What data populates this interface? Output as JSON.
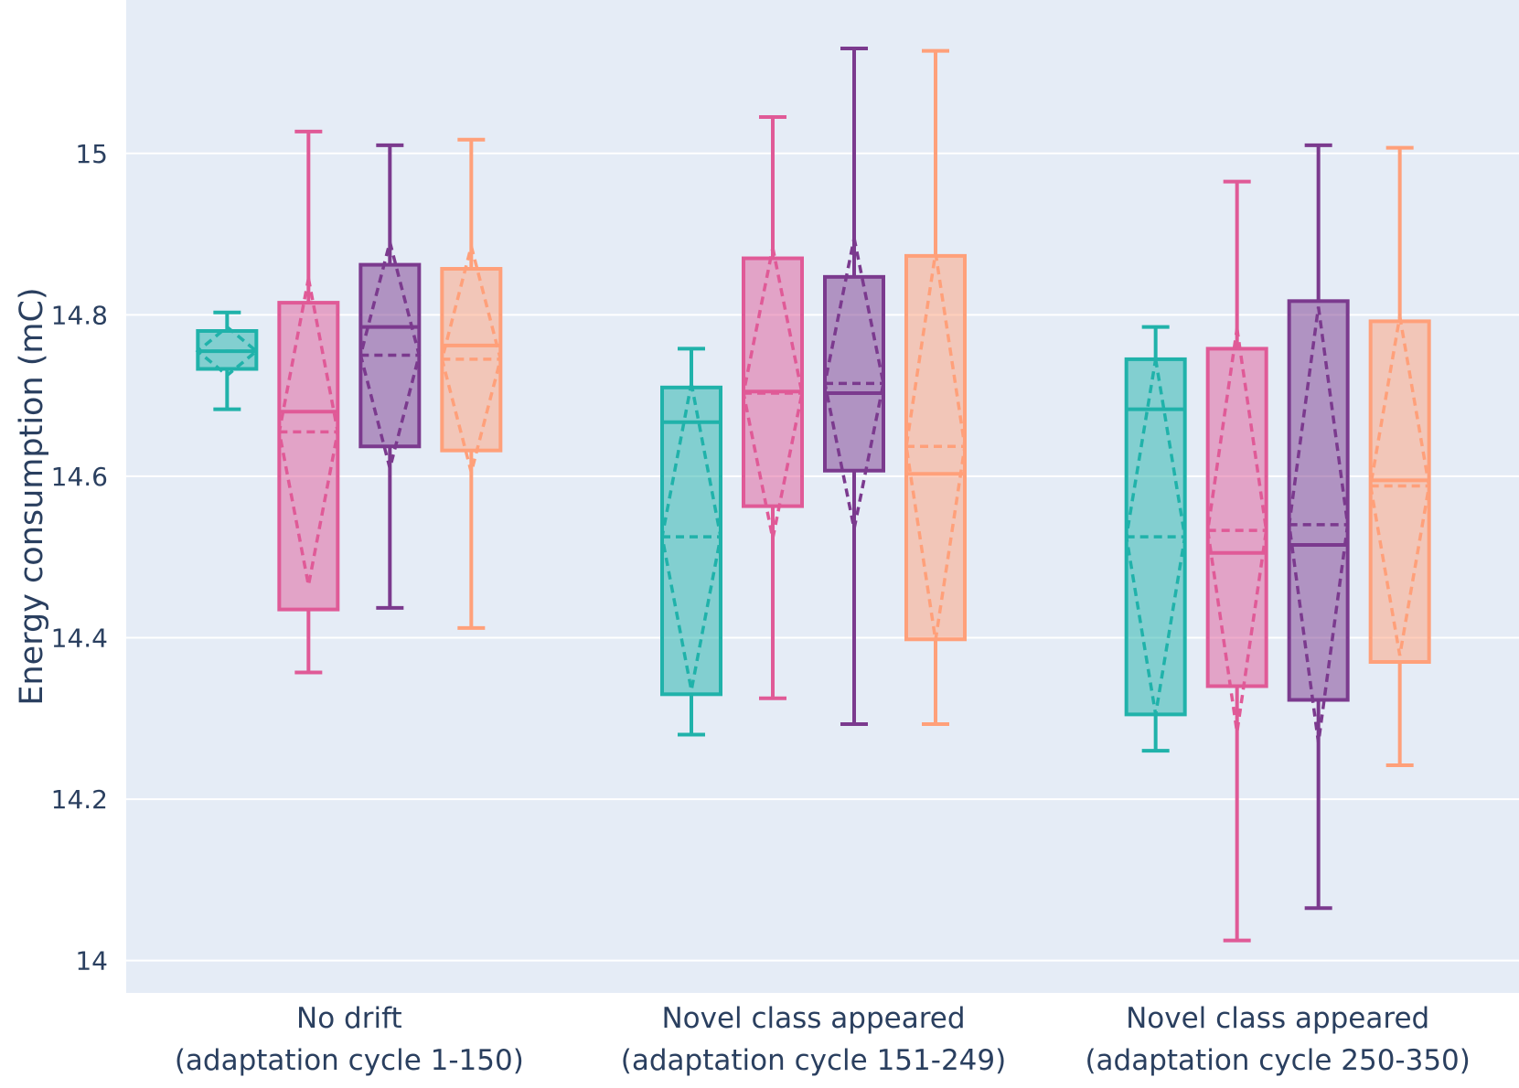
{
  "chart_data": {
    "type": "box",
    "ylabel": "Energy consumption (mC)",
    "xlabel": "",
    "ylim": [
      13.96,
      15.19
    ],
    "yticks": [
      {
        "value": 14,
        "label": "14"
      },
      {
        "value": 14.2,
        "label": "14.2"
      },
      {
        "value": 14.4,
        "label": "14.4"
      },
      {
        "value": 14.6,
        "label": "14.6"
      },
      {
        "value": 14.8,
        "label": "14.8"
      },
      {
        "value": 15,
        "label": "15"
      }
    ],
    "categories": [
      {
        "line1": "No drift",
        "line2": "(adaptation cycle 1-150)"
      },
      {
        "line1": "Novel class appeared",
        "line2": "(adaptation cycle 151-249)"
      },
      {
        "line1": "Novel class appeared",
        "line2": "(adaptation cycle 250-350)"
      }
    ],
    "series": [
      {
        "color": "#20b2aa",
        "boxes": [
          {
            "min": 14.683,
            "q1": 14.733,
            "median": 14.755,
            "q3": 14.78,
            "max": 14.803,
            "mean": 14.755,
            "sd": 0.03
          },
          {
            "min": 14.28,
            "q1": 14.33,
            "median": 14.667,
            "q3": 14.71,
            "max": 14.758,
            "mean": 14.525,
            "sd": 0.19
          },
          {
            "min": 14.26,
            "q1": 14.305,
            "median": 14.683,
            "q3": 14.745,
            "max": 14.785,
            "mean": 14.525,
            "sd": 0.22
          }
        ]
      },
      {
        "color": "#e05a97",
        "boxes": [
          {
            "min": 14.357,
            "q1": 14.435,
            "median": 14.68,
            "q3": 14.815,
            "max": 15.027,
            "mean": 14.655,
            "sd": 0.19
          },
          {
            "min": 14.325,
            "q1": 14.563,
            "median": 14.705,
            "q3": 14.87,
            "max": 15.045,
            "mean": 14.703,
            "sd": 0.18
          },
          {
            "min": 14.025,
            "q1": 14.34,
            "median": 14.505,
            "q3": 14.758,
            "max": 14.965,
            "mean": 14.533,
            "sd": 0.25
          }
        ]
      },
      {
        "color": "#7b3a8e",
        "boxes": [
          {
            "min": 14.437,
            "q1": 14.637,
            "median": 14.785,
            "q3": 14.862,
            "max": 15.01,
            "mean": 14.75,
            "sd": 0.14
          },
          {
            "min": 14.293,
            "q1": 14.607,
            "median": 14.703,
            "q3": 14.847,
            "max": 15.13,
            "mean": 14.715,
            "sd": 0.18
          },
          {
            "min": 14.065,
            "q1": 14.323,
            "median": 14.515,
            "q3": 14.817,
            "max": 15.01,
            "mean": 14.54,
            "sd": 0.27
          }
        ]
      },
      {
        "color": "#ffa07a",
        "boxes": [
          {
            "min": 14.412,
            "q1": 14.632,
            "median": 14.762,
            "q3": 14.857,
            "max": 15.017,
            "mean": 14.745,
            "sd": 0.14
          },
          {
            "min": 14.293,
            "q1": 14.398,
            "median": 14.603,
            "q3": 14.873,
            "max": 15.127,
            "mean": 14.637,
            "sd": 0.24
          },
          {
            "min": 14.242,
            "q1": 14.37,
            "median": 14.595,
            "q3": 14.792,
            "max": 15.007,
            "mean": 14.588,
            "sd": 0.21
          }
        ]
      }
    ],
    "boxmean": "sd",
    "grid": true,
    "background": "#e5ecf6",
    "gridcolor": "#ffffff",
    "legend": "none"
  }
}
